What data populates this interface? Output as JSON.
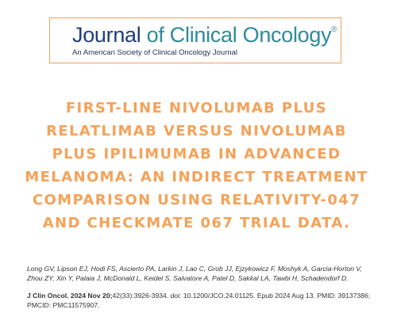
{
  "header": {
    "journal_name_1": "Journal",
    "journal_name_2": "of Clinical Oncology",
    "registered": "®",
    "subtitle": "An American Society of Clinical Oncology Journal"
  },
  "article": {
    "title_lines": [
      "FIRST-LINE NIVOLUMAB PLUS",
      "RELATLIMAB VERSUS NIVOLUMAB",
      "PLUS IPILIMUMAB IN ADVANCED",
      "MELANOMA: AN INDIRECT TREATMENT",
      "COMPARISON USING RELATIVITY-047",
      "AND CHECKMATE 067 TRIAL DATA."
    ],
    "authors": "Long GV, Lipson EJ, Hodi FS, Ascierto PA, Larkin J, Lao C, Grob JJ, Ejzykowicz F, Moshyk A, Garcia-Horton V, Zhou ZY, Xin Y, Palaia J, McDonald L, Keidel S, Salvatore A, Patel D, Sakkal LA, Tawbi H, Schadendorf D.",
    "citation_journal": "J Clin Oncol. 2024 Nov 20;",
    "citation_rest": "42(33):3926-3934. doi: 10.1200/JCO.24.01125. Epub 2024 Aug 13. PMID: 39137386; PMCID: PMC11575907."
  }
}
